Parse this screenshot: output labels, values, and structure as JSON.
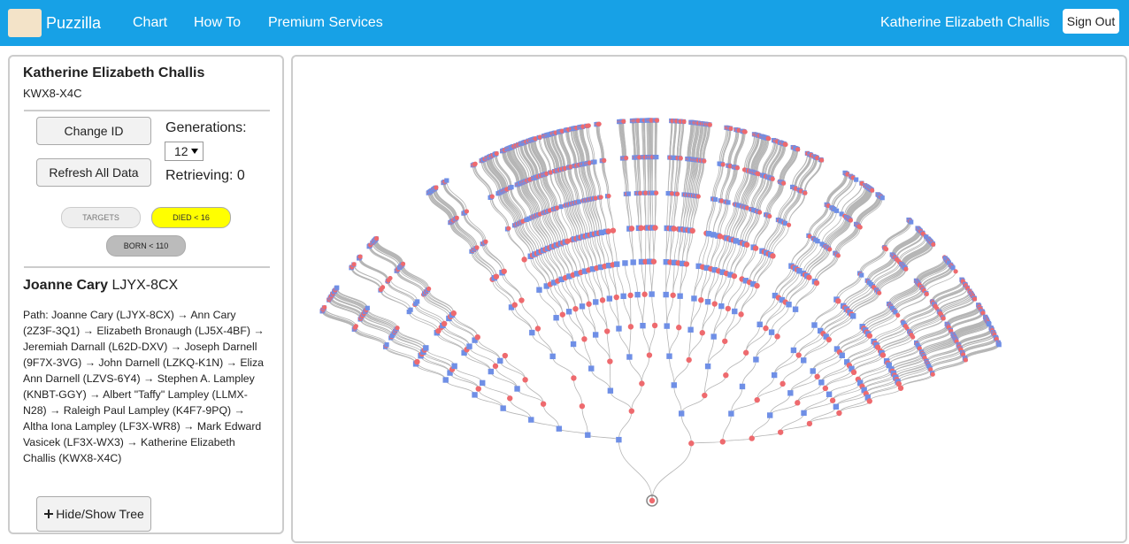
{
  "navbar": {
    "brand": "Puzzilla",
    "links": [
      "Chart",
      "How To",
      "Premium Services"
    ],
    "user": "Katherine Elizabeth Challis",
    "sign_out": "Sign Out"
  },
  "sidebar": {
    "person": {
      "name": "Katherine Elizabeth Challis",
      "id": "KWX8-X4C"
    },
    "buttons": {
      "change_id": "Change ID",
      "refresh": "Refresh All Data",
      "toggle": "Hide/Show Tree"
    },
    "generations": {
      "label": "Generations:",
      "value": "12"
    },
    "retrieving": "Retrieving: 0",
    "filters": [
      "TARGETS",
      "DIED < 16",
      "BORN < 110"
    ],
    "selected": {
      "name": "Joanne Cary",
      "id": "LJYX-8CX"
    },
    "path": "Path: Joanne Cary (LJYX-8CX) → Ann Cary (2Z3F-3Q1) → Elizabeth Bronaugh (LJ5X-4BF) → Jeremiah Darnall (L62D-DXV) → Joseph Darnell (9F7X-3VG) → John Darnell (LZKQ-K1N) → Eliza Ann Darnell (LZVS-6Y4) → Stephen A. Lampley (KNBT-GGY) → Albert \"Taffy\" Lampley (LLMX-N28) → Raleigh Paul Lampley (K4F7-9PQ) → Altha Iona Lampley (LF3X-WR8) → Mark Edward Vasicek (LF3X-WX3) → Katherine Elizabeth Challis (KWX8-X4C)"
  }
}
